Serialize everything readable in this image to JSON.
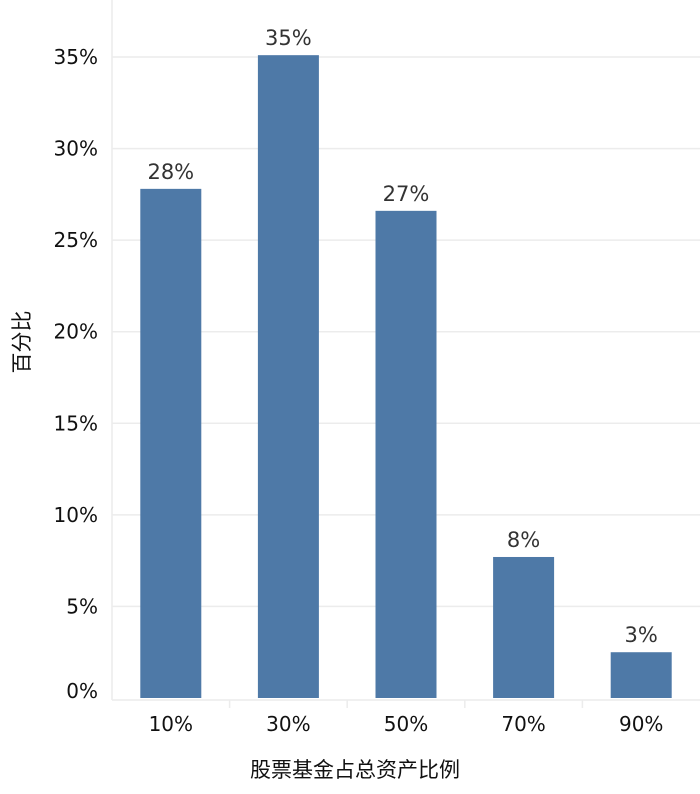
{
  "chart_data": {
    "type": "bar",
    "title": "",
    "xlabel": "股票基金占总资产比例",
    "ylabel": "百分比",
    "categories": [
      "10%",
      "30%",
      "50%",
      "70%",
      "90%"
    ],
    "values": [
      27.8,
      35.1,
      26.6,
      7.7,
      2.5
    ],
    "data_labels": [
      "28%",
      "35%",
      "27%",
      "8%",
      "3%"
    ],
    "y_ticks": [
      0,
      5,
      10,
      15,
      20,
      25,
      30,
      35
    ],
    "y_tick_labels": [
      "0%",
      "5%",
      "10%",
      "15%",
      "20%",
      "25%",
      "30%",
      "35%"
    ],
    "ylim": [
      0,
      37.5
    ],
    "grid": true,
    "legend": "none",
    "bar_color": "#4e79a7",
    "grid_color": "#ececec"
  }
}
